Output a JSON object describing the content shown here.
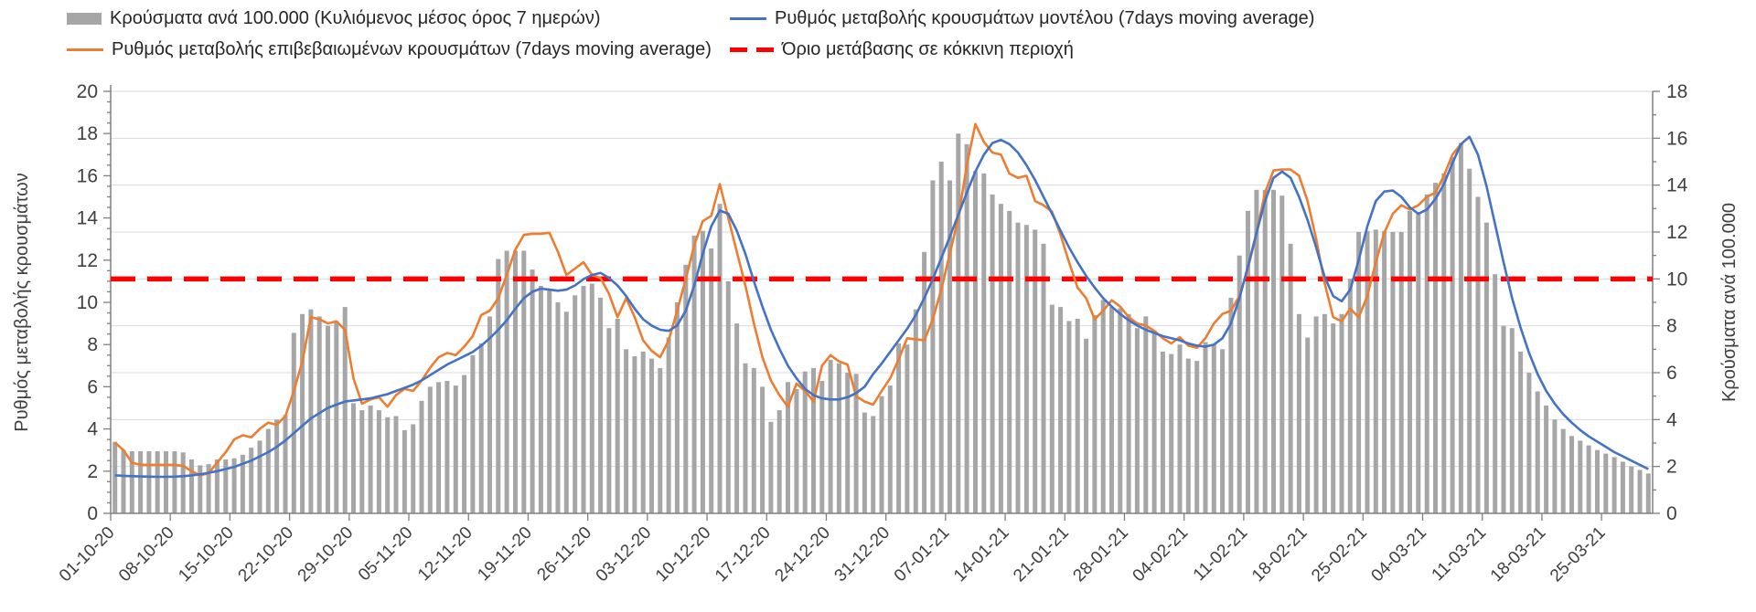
{
  "legend": {
    "items": [
      {
        "id": "cases_bars",
        "label": "Κρούσματα ανά 100.000 (Κυλιόμενος μέσος όρος 7 ημερών)",
        "marker": "swatch",
        "color": "#a6a6a6"
      },
      {
        "id": "confirmed_rate",
        "label": "Ρυθμός μεταβολής επιβεβαιωμένων κρουσμάτων (7days moving average)",
        "marker": "line",
        "color": "#ed7d31"
      },
      {
        "id": "model_rate",
        "label": "Ρυθμός μεταβολής κρουσμάτων μοντέλου (7days moving average)",
        "marker": "line",
        "color": "#4472c4"
      },
      {
        "id": "red_threshold",
        "label": "Όριο μετάβασης σε κόκκινη περιοχή",
        "marker": "dashed",
        "color": "#ff0000"
      }
    ]
  },
  "chart_data": {
    "type": "combo",
    "x_start": "01-10-20",
    "x_frequency": "daily",
    "x_tick_interval_days": 7,
    "x_tick_labels": [
      "01-10-20",
      "08-10-20",
      "15-10-20",
      "22-10-20",
      "29-10-20",
      "05-11-20",
      "12-11-20",
      "19-11-20",
      "26-11-20",
      "03-12-20",
      "10-12-20",
      "17-12-20",
      "24-12-20",
      "31-12-20",
      "07-01-21",
      "14-01-21",
      "21-01-21",
      "28-01-21",
      "04-02-21",
      "11-02-21",
      "18-02-21",
      "25-02-21",
      "04-03-21",
      "11-03-21",
      "18-03-21",
      "25-03-21"
    ],
    "left_axis": {
      "title": "Ρυθμός μεταβολής κρουσμάτων",
      "min": 0,
      "max": 20,
      "step": 2,
      "tick_values": [
        0,
        2,
        4,
        6,
        8,
        10,
        12,
        14,
        16,
        18,
        20
      ]
    },
    "right_axis": {
      "title": "Κρούσματα ανά 100.000",
      "min": 0,
      "max": 18,
      "step": 2,
      "tick_values": [
        0,
        2,
        4,
        6,
        8,
        10,
        12,
        14,
        16,
        18
      ]
    },
    "threshold": {
      "label": "Όριο μετάβασης σε κόκκινη περιοχή",
      "axis": "right",
      "value": 10,
      "color": "#ff0000"
    },
    "grid": {
      "color": "#d9d9d9",
      "horizontal_every_right_units": 2
    },
    "series": [
      {
        "name": "Κρούσματα ανά 100.000 (Κυλιόμενος μέσος όρος 7 ημερών)",
        "type": "bar",
        "axis": "right",
        "color": "#a6a6a6",
        "values": [
          3.05,
          2.7,
          2.65,
          2.65,
          2.65,
          2.65,
          2.65,
          2.65,
          2.6,
          2.3,
          2.05,
          2.1,
          2.3,
          2.3,
          2.35,
          2.5,
          2.8,
          3.1,
          3.6,
          4.0,
          4.2,
          7.7,
          8.5,
          8.7,
          8.4,
          8.0,
          8.2,
          8.8,
          4.7,
          4.4,
          4.6,
          4.4,
          4.1,
          4.15,
          3.55,
          3.8,
          4.8,
          5.4,
          5.6,
          5.65,
          5.45,
          5.9,
          6.75,
          7.25,
          8.4,
          10.85,
          11.2,
          11.2,
          11.2,
          10.4,
          9.7,
          9.55,
          9.0,
          8.6,
          9.3,
          9.7,
          9.8,
          9.2,
          7.9,
          8.3,
          7.0,
          6.7,
          6.9,
          6.6,
          6.2,
          7.5,
          9.0,
          10.6,
          11.85,
          12.05,
          11.3,
          13.2,
          9.9,
          8.1,
          6.4,
          6.2,
          5.4,
          3.9,
          4.4,
          5.6,
          5.3,
          6.05,
          6.2,
          5.65,
          6.55,
          6.4,
          6.0,
          5.95,
          4.3,
          4.15,
          5.0,
          5.45,
          7.25,
          7.2,
          8.7,
          11.15,
          14.2,
          15.0,
          14.2,
          16.2,
          15.75,
          14.6,
          14.5,
          13.6,
          13.2,
          12.9,
          12.4,
          12.3,
          12.1,
          11.5,
          8.9,
          8.8,
          8.2,
          8.3,
          7.45,
          8.45,
          9.1,
          8.8,
          8.75,
          8.5,
          7.9,
          8.4,
          7.8,
          6.9,
          6.8,
          7.2,
          6.6,
          6.5,
          7.3,
          7.2,
          7.0,
          9.2,
          11.0,
          12.9,
          13.8,
          13.8,
          13.8,
          13.55,
          11.5,
          8.5,
          7.5,
          8.4,
          8.5,
          8.1,
          8.5,
          10.0,
          12.0,
          12.05,
          12.1,
          12.05,
          12.0,
          12.0,
          12.9,
          12.85,
          13.6,
          14.1,
          14.5,
          15.2,
          15.8,
          14.7,
          13.5,
          12.4,
          10.2,
          8.0,
          7.9,
          6.9,
          6.0,
          5.2,
          4.6,
          4.0,
          3.6,
          3.3,
          3.1,
          2.9,
          2.7,
          2.55,
          2.4,
          2.2,
          2.0,
          1.85,
          1.7
        ]
      },
      {
        "name": "Ρυθμός μεταβολής επιβεβαιωμένων κρουσμάτων (7days moving average)",
        "type": "line",
        "axis": "left",
        "color": "#ed7d31",
        "values": [
          3.35,
          3.0,
          2.4,
          2.3,
          2.3,
          2.3,
          2.3,
          2.3,
          2.25,
          2.0,
          1.8,
          1.9,
          2.4,
          2.9,
          3.5,
          3.7,
          3.6,
          4.0,
          4.3,
          4.2,
          4.6,
          5.8,
          7.2,
          9.3,
          9.2,
          9.0,
          9.1,
          8.7,
          6.4,
          5.2,
          5.4,
          5.5,
          5.05,
          5.6,
          5.9,
          5.8,
          6.3,
          6.9,
          7.4,
          7.6,
          7.5,
          7.9,
          8.4,
          9.4,
          9.6,
          10.2,
          11.3,
          12.5,
          13.2,
          13.25,
          13.25,
          13.3,
          12.4,
          11.3,
          11.6,
          11.9,
          11.3,
          11.15,
          10.4,
          9.3,
          10.2,
          9.3,
          8.2,
          7.7,
          7.4,
          8.2,
          9.6,
          11.1,
          12.7,
          13.85,
          14.1,
          15.6,
          14.0,
          12.4,
          10.8,
          9.0,
          7.4,
          6.3,
          5.6,
          5.05,
          6.15,
          5.8,
          5.3,
          7.0,
          7.5,
          7.2,
          7.05,
          5.55,
          5.3,
          5.15,
          5.8,
          6.4,
          7.3,
          8.3,
          8.25,
          8.2,
          9.2,
          10.6,
          12.3,
          14.0,
          16.5,
          18.45,
          17.6,
          17.1,
          17.0,
          16.1,
          15.9,
          16.0,
          14.8,
          14.6,
          14.3,
          13.2,
          11.9,
          10.7,
          10.2,
          9.2,
          9.6,
          10.1,
          9.8,
          9.3,
          9.0,
          8.9,
          8.65,
          8.3,
          8.05,
          8.35,
          7.95,
          7.85,
          8.3,
          9.0,
          9.45,
          9.6,
          10.3,
          11.6,
          13.3,
          15.2,
          16.25,
          16.3,
          16.3,
          16.0,
          14.8,
          13.0,
          10.9,
          9.3,
          9.1,
          9.7,
          9.3,
          10.3,
          11.9,
          13.3,
          14.2,
          14.6,
          14.4,
          14.6,
          15.0,
          15.2,
          16.0,
          17.0,
          17.5,
          17.85,
          null,
          null,
          null,
          null,
          null,
          null,
          null,
          null,
          null,
          null,
          null,
          null,
          null,
          null,
          null,
          null,
          null,
          null,
          null,
          null,
          null
        ]
      },
      {
        "name": "Ρυθμός μεταβολής κρουσμάτων μοντέλου (7days moving average)",
        "type": "line",
        "axis": "left",
        "color": "#4472c4",
        "values": [
          1.8,
          1.78,
          1.76,
          1.75,
          1.74,
          1.73,
          1.73,
          1.74,
          1.76,
          1.8,
          1.85,
          1.92,
          2.0,
          2.1,
          2.2,
          2.35,
          2.5,
          2.7,
          2.9,
          3.15,
          3.45,
          3.8,
          4.15,
          4.5,
          4.75,
          5.0,
          5.15,
          5.3,
          5.35,
          5.4,
          5.45,
          5.55,
          5.65,
          5.8,
          5.95,
          6.1,
          6.3,
          6.55,
          6.8,
          7.05,
          7.25,
          7.45,
          7.65,
          7.95,
          8.3,
          8.7,
          9.15,
          9.7,
          10.2,
          10.5,
          10.65,
          10.6,
          10.55,
          10.6,
          10.8,
          11.1,
          11.3,
          11.4,
          11.15,
          10.8,
          10.3,
          9.7,
          9.2,
          8.9,
          8.7,
          8.65,
          8.9,
          9.6,
          10.8,
          12.3,
          13.6,
          14.35,
          14.2,
          13.4,
          12.3,
          11.0,
          9.8,
          8.7,
          7.8,
          7.0,
          6.4,
          5.9,
          5.6,
          5.45,
          5.4,
          5.4,
          5.5,
          5.7,
          6.0,
          6.6,
          7.1,
          7.65,
          8.2,
          8.75,
          9.4,
          10.2,
          11.1,
          12.1,
          13.1,
          14.15,
          15.2,
          16.2,
          17.0,
          17.55,
          17.7,
          17.5,
          17.1,
          16.5,
          15.8,
          15.0,
          14.2,
          13.4,
          12.6,
          11.9,
          11.25,
          10.7,
          10.2,
          9.8,
          9.45,
          9.15,
          8.9,
          8.7,
          8.55,
          8.4,
          8.3,
          8.2,
          8.05,
          7.95,
          7.9,
          8.0,
          8.3,
          9.0,
          10.2,
          11.7,
          13.3,
          14.8,
          15.9,
          16.2,
          15.9,
          15.0,
          13.9,
          12.6,
          11.2,
          10.3,
          10.05,
          10.6,
          12.0,
          13.6,
          14.8,
          15.25,
          15.3,
          15.0,
          14.5,
          14.2,
          14.4,
          14.9,
          15.6,
          16.6,
          17.5,
          17.85,
          17.0,
          15.5,
          13.7,
          11.9,
          10.2,
          8.8,
          7.6,
          6.6,
          5.8,
          5.2,
          4.7,
          4.3,
          3.95,
          3.65,
          3.4,
          3.15,
          2.9,
          2.7,
          2.5,
          2.3,
          2.1
        ]
      }
    ]
  }
}
